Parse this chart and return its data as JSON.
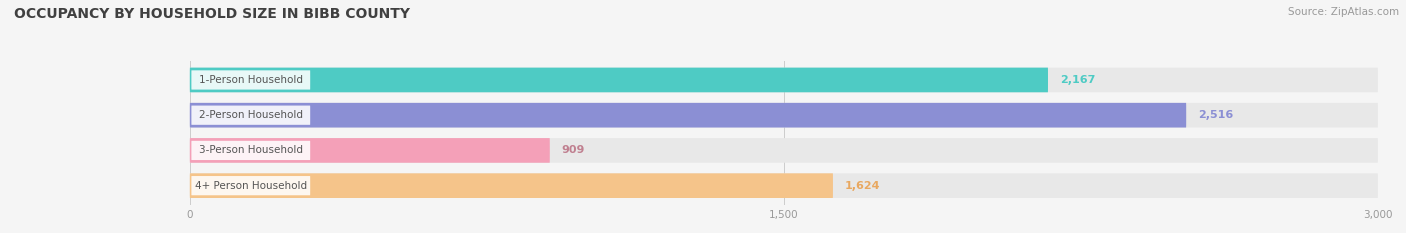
{
  "title": "OCCUPANCY BY HOUSEHOLD SIZE IN BIBB COUNTY",
  "source": "Source: ZipAtlas.com",
  "categories": [
    "1-Person Household",
    "2-Person Household",
    "3-Person Household",
    "4+ Person Household"
  ],
  "values": [
    2167,
    2516,
    909,
    1624
  ],
  "bar_colors": [
    "#4ECBC4",
    "#8B8FD4",
    "#F4A0B8",
    "#F5C48A"
  ],
  "value_label_colors": [
    "#4ECBC4",
    "#8B8FD4",
    "#c08090",
    "#E8A860"
  ],
  "value_labels": [
    "2,167",
    "2,516",
    "909",
    "1,624"
  ],
  "xlim": [
    0,
    3000
  ],
  "xticks": [
    0,
    1500,
    3000
  ],
  "xtick_labels": [
    "0",
    "1,500",
    "3,000"
  ],
  "bg_color": "#f5f5f5",
  "bar_bg_color": "#e8e8e8",
  "title_fontsize": 10,
  "source_fontsize": 7.5,
  "label_fontsize": 7.5,
  "value_fontsize": 8
}
